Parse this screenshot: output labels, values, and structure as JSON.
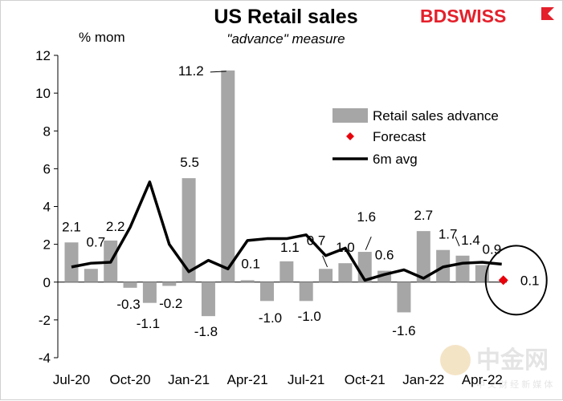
{
  "brand": {
    "text_bd": "BD",
    "text_swiss": "SWISS",
    "color": "#e4202b"
  },
  "watermark": {
    "name": "中金网",
    "sub": "中 文 财 经 新 媒 体"
  },
  "chart_data": {
    "type": "bar",
    "title": "US Retail sales",
    "subtitle": "\"advance\" measure",
    "ylabel": "% mom",
    "ylim": [
      -4,
      12
    ],
    "yticks": [
      -4,
      -2,
      0,
      2,
      4,
      6,
      8,
      10,
      12
    ],
    "x": [
      "2020-07",
      "2020-08",
      "2020-09",
      "2020-10",
      "2020-11",
      "2020-12",
      "2021-01",
      "2021-02",
      "2021-03",
      "2021-04",
      "2021-05",
      "2021-06",
      "2021-07",
      "2021-08",
      "2021-09",
      "2021-10",
      "2021-11",
      "2021-12",
      "2022-01",
      "2022-02",
      "2022-03",
      "2022-04",
      "2022-05"
    ],
    "xtick_labels": [
      {
        "x": "2020-07",
        "label": "Jul-20"
      },
      {
        "x": "2020-10",
        "label": "Oct-20"
      },
      {
        "x": "2021-01",
        "label": "Jan-21"
      },
      {
        "x": "2021-04",
        "label": "Apr-21"
      },
      {
        "x": "2021-07",
        "label": "Jul-21"
      },
      {
        "x": "2021-10",
        "label": "Oct-21"
      },
      {
        "x": "2022-01",
        "label": "Jan-22"
      },
      {
        "x": "2022-04",
        "label": "Apr-22"
      }
    ],
    "series": [
      {
        "name": "Retail sales advance",
        "kind": "bar",
        "color": "#a6a6a6",
        "values": [
          2.1,
          0.7,
          2.2,
          -0.3,
          -1.1,
          -0.2,
          5.5,
          -1.8,
          11.2,
          0.1,
          -1.0,
          1.1,
          -1.0,
          0.7,
          1.0,
          1.6,
          0.6,
          -1.6,
          2.7,
          1.7,
          1.4,
          0.9,
          null
        ]
      },
      {
        "name": "Forecast",
        "kind": "marker",
        "color": "#e8000b",
        "points": [
          {
            "x": "2022-05",
            "y": 0.1
          }
        ]
      },
      {
        "name": "6m avg",
        "kind": "line",
        "color": "#000000",
        "values": [
          0.8,
          1.0,
          1.05,
          2.9,
          5.3,
          2.0,
          0.55,
          1.15,
          0.7,
          2.2,
          2.3,
          2.3,
          2.5,
          1.4,
          1.8,
          0.1,
          0.4,
          0.65,
          0.2,
          0.8,
          1.0,
          1.05,
          0.95
        ]
      }
    ],
    "data_labels": [
      {
        "x": "2020-07",
        "text": "2.1"
      },
      {
        "x": "2020-08",
        "text": "0.7"
      },
      {
        "x": "2020-09",
        "text": "2.2"
      },
      {
        "x": "2020-10",
        "text": "-0.3"
      },
      {
        "x": "2020-11",
        "text": "-1.1"
      },
      {
        "x": "2020-12",
        "text": "-0.2"
      },
      {
        "x": "2021-01",
        "text": "5.5"
      },
      {
        "x": "2021-02",
        "text": "-1.8"
      },
      {
        "x": "2021-03",
        "text": "11.2"
      },
      {
        "x": "2021-04",
        "text": "0.1"
      },
      {
        "x": "2021-05",
        "text": "-1.0"
      },
      {
        "x": "2021-06",
        "text": "1.1"
      },
      {
        "x": "2021-07",
        "text": "-1.0"
      },
      {
        "x": "2021-08",
        "text": "0.7"
      },
      {
        "x": "2021-09",
        "text": "1.0"
      },
      {
        "x": "2021-10",
        "text": "1.6"
      },
      {
        "x": "2021-11",
        "text": "0.6"
      },
      {
        "x": "2021-12",
        "text": "-1.6"
      },
      {
        "x": "2022-01",
        "text": "2.7"
      },
      {
        "x": "2022-02",
        "text": "1.7"
      },
      {
        "x": "2022-03",
        "text": "1.4"
      },
      {
        "x": "2022-04",
        "text": "0.9"
      },
      {
        "x": "2022-05",
        "text": "0.1"
      }
    ],
    "legend_position": "top-right",
    "grid": false
  }
}
